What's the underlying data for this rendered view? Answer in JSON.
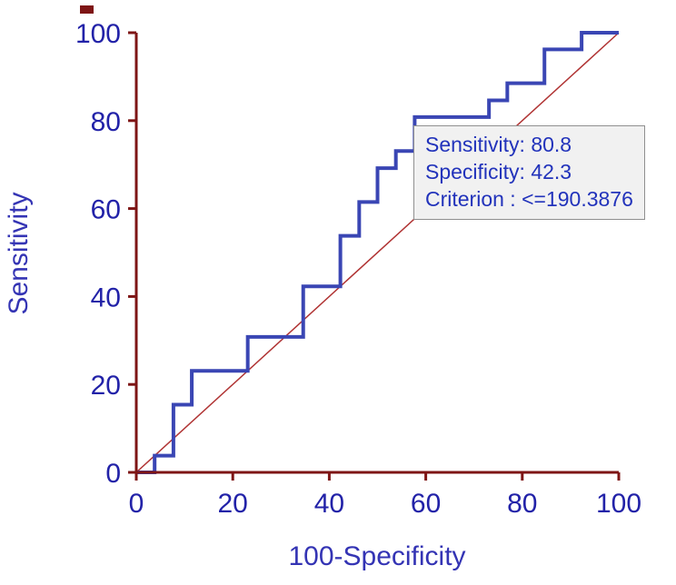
{
  "chart_data": {
    "type": "line",
    "subtype": "roc-curve-step",
    "title": "",
    "xlabel": "100-Specificity",
    "ylabel": "Sensitivity",
    "xlim": [
      0,
      100
    ],
    "ylim": [
      0,
      100
    ],
    "x_ticks": [
      0,
      20,
      40,
      60,
      80,
      100
    ],
    "y_ticks": [
      0,
      20,
      40,
      60,
      80,
      100
    ],
    "grid": false,
    "legend": "none",
    "series": [
      {
        "name": "ROC curve",
        "type": "step",
        "color": "#3a46b4",
        "width": 4,
        "points": [
          [
            0,
            0
          ],
          [
            3.8,
            0
          ],
          [
            3.8,
            3.8
          ],
          [
            7.7,
            3.8
          ],
          [
            7.7,
            15.4
          ],
          [
            11.5,
            15.4
          ],
          [
            11.5,
            23.1
          ],
          [
            23.1,
            23.1
          ],
          [
            23.1,
            30.8
          ],
          [
            34.6,
            30.8
          ],
          [
            34.6,
            42.3
          ],
          [
            42.3,
            42.3
          ],
          [
            42.3,
            53.8
          ],
          [
            46.2,
            53.8
          ],
          [
            46.2,
            61.5
          ],
          [
            50,
            61.5
          ],
          [
            50,
            69.2
          ],
          [
            53.8,
            69.2
          ],
          [
            53.8,
            73.1
          ],
          [
            57.7,
            73.1
          ],
          [
            57.7,
            80.8
          ],
          [
            73.1,
            80.8
          ],
          [
            73.1,
            84.6
          ],
          [
            76.9,
            84.6
          ],
          [
            76.9,
            88.5
          ],
          [
            84.6,
            88.5
          ],
          [
            84.6,
            96.2
          ],
          [
            92.3,
            96.2
          ],
          [
            92.3,
            100
          ],
          [
            100,
            100
          ]
        ]
      },
      {
        "name": "reference diagonal",
        "type": "line",
        "color": "#b03333",
        "width": 1.5,
        "points": [
          [
            0,
            0
          ],
          [
            100,
            100
          ]
        ]
      }
    ],
    "annotation": {
      "lines": [
        "Sensitivity: 80.8",
        "Specificity: 42.3",
        "Criterion : <=190.3876"
      ],
      "text_color": "#2233bb",
      "bg": "#f1f1f1",
      "border": "#8f8f8f"
    },
    "colors": {
      "axis": "#7e1515",
      "tick_labels": "#2222a8",
      "axis_titles": "#3434b4",
      "background": "#ffffff"
    }
  }
}
